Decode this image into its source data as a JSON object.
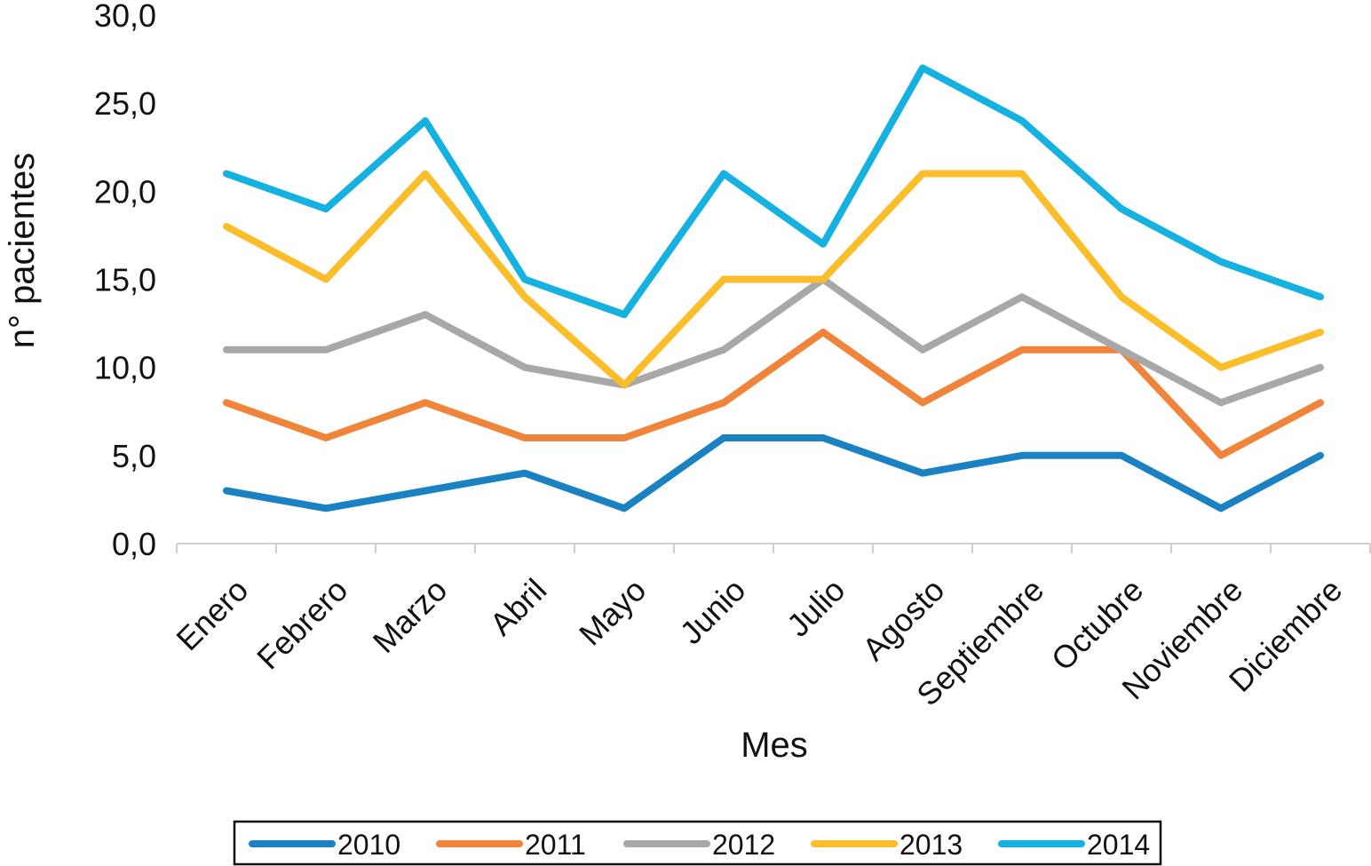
{
  "chart_data": {
    "type": "line",
    "xlabel": "Mes",
    "ylabel": "n° pacientes",
    "categories": [
      "Enero",
      "Febrero",
      "Marzo",
      "Abril",
      "Mayo",
      "Junio",
      "Julio",
      "Agosto",
      "Septiembre",
      "Octubre",
      "Noviembre",
      "Diciembre"
    ],
    "ylim": [
      0,
      30
    ],
    "yticks": [
      "0,0",
      "5,0",
      "10,0",
      "15,0",
      "20,0",
      "25,0",
      "30,0"
    ],
    "grid": false,
    "legend_position": "bottom",
    "series": [
      {
        "name": "2010",
        "color": "#1a82c3",
        "values": [
          3,
          2,
          3,
          4,
          2,
          6,
          6,
          4,
          5,
          5,
          2,
          5
        ]
      },
      {
        "name": "2011",
        "color": "#f0843a",
        "values": [
          8,
          6,
          8,
          6,
          6,
          8,
          12,
          8,
          11,
          11,
          5,
          8
        ]
      },
      {
        "name": "2012",
        "color": "#a8a8a8",
        "values": [
          11,
          11,
          13,
          10,
          9,
          11,
          15,
          11,
          14,
          11,
          8,
          10
        ]
      },
      {
        "name": "2013",
        "color": "#fbbd29",
        "values": [
          18,
          15,
          21,
          14,
          9,
          15,
          15,
          21,
          21,
          14,
          10,
          12
        ]
      },
      {
        "name": "2014",
        "color": "#15b1e0",
        "values": [
          21,
          19,
          24,
          15,
          13,
          21,
          17,
          27,
          24,
          19,
          16,
          14
        ]
      }
    ]
  }
}
